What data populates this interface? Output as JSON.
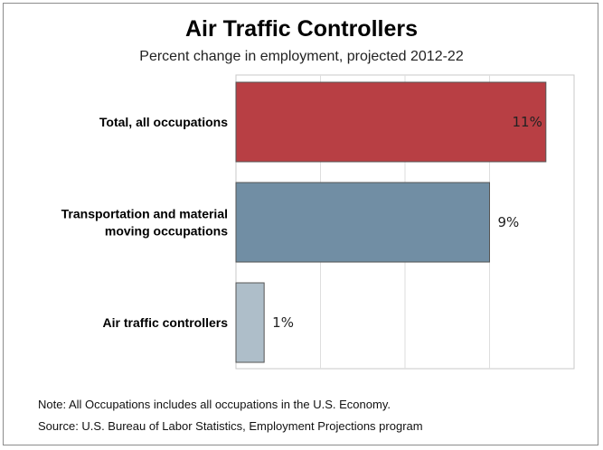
{
  "chart_data": {
    "type": "bar",
    "orientation": "horizontal",
    "title": "Air Traffic Controllers",
    "subtitle": "Percent change in employment, projected 2012-22",
    "categories": [
      [
        "Total, all occupations"
      ],
      [
        "Transportation and material",
        "moving occupations"
      ],
      [
        "Air traffic controllers"
      ]
    ],
    "values": [
      11,
      9,
      1
    ],
    "value_labels": [
      "11%",
      "9%",
      "1%"
    ],
    "colors": [
      "#b83f44",
      "#718ea4",
      "#aebec9"
    ],
    "xlim": [
      0,
      12
    ],
    "grid": true,
    "legend": "none"
  },
  "note": "Note: All Occupations includes all occupations in the U.S. Economy.",
  "source": "Source: U.S. Bureau of Labor Statistics, Employment Projections program"
}
